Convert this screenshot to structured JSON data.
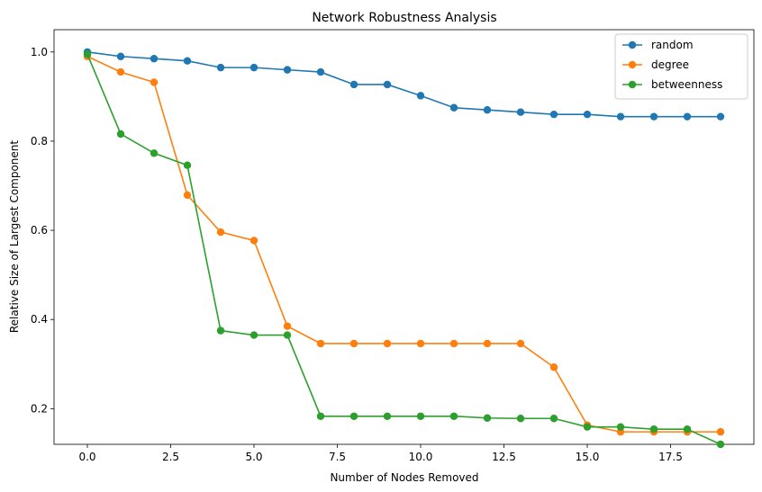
{
  "chart_data": {
    "type": "line",
    "title": "Network Robustness Analysis",
    "xlabel": "Number of Nodes Removed",
    "ylabel": "Relative Size of Largest Component",
    "xlim": [
      -1,
      20
    ],
    "ylim": [
      0.12,
      1.05
    ],
    "x_ticks": [
      0.0,
      2.5,
      5.0,
      7.5,
      10.0,
      12.5,
      15.0,
      17.5
    ],
    "x_tick_labels": [
      "0.0",
      "2.5",
      "5.0",
      "7.5",
      "10.0",
      "12.5",
      "15.0",
      "17.5"
    ],
    "y_ticks": [
      0.2,
      0.4,
      0.6,
      0.8,
      1.0
    ],
    "y_tick_labels": [
      "0.2",
      "0.4",
      "0.6",
      "0.8",
      "1.0"
    ],
    "grid": false,
    "legend_position": "top-right",
    "x": [
      0,
      1,
      2,
      3,
      4,
      5,
      6,
      7,
      8,
      9,
      10,
      11,
      12,
      13,
      14,
      15,
      16,
      17,
      18,
      19
    ],
    "series": [
      {
        "name": "random",
        "color": "#1f77b4",
        "values": [
          1.0,
          0.99,
          0.985,
          0.98,
          0.965,
          0.965,
          0.96,
          0.955,
          0.927,
          0.927,
          0.902,
          0.875,
          0.87,
          0.865,
          0.86,
          0.86,
          0.855,
          0.855,
          0.855,
          0.855
        ]
      },
      {
        "name": "degree",
        "color": "#ff7f0e",
        "values": [
          0.99,
          0.955,
          0.932,
          0.679,
          0.596,
          0.577,
          0.385,
          0.346,
          0.346,
          0.346,
          0.346,
          0.346,
          0.346,
          0.346,
          0.293,
          0.163,
          0.148,
          0.148,
          0.148,
          0.148
        ]
      },
      {
        "name": "betweenness",
        "color": "#2ca02c",
        "values": [
          0.995,
          0.816,
          0.773,
          0.746,
          0.375,
          0.365,
          0.365,
          0.183,
          0.183,
          0.183,
          0.183,
          0.183,
          0.179,
          0.178,
          0.178,
          0.159,
          0.159,
          0.154,
          0.154,
          0.12
        ]
      }
    ]
  }
}
